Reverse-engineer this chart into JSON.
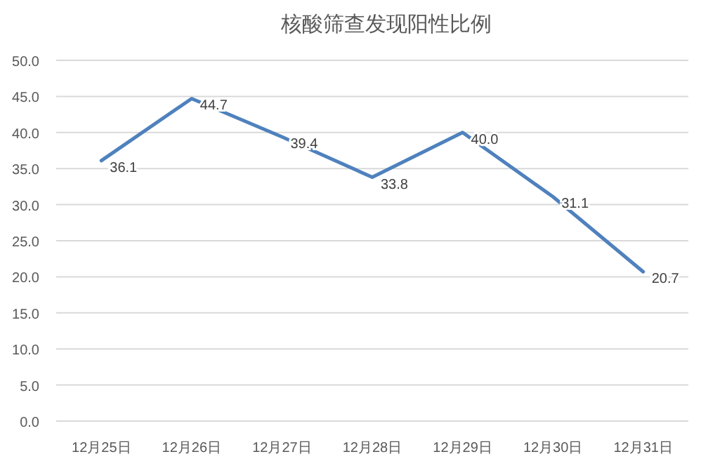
{
  "chart_data": {
    "type": "line",
    "title": "核酸筛查发现阳性比例",
    "categories": [
      "12月25日",
      "12月26日",
      "12月27日",
      "12月28日",
      "12月29日",
      "12月30日",
      "12月31日"
    ],
    "series": [
      {
        "color": "#4f81bd",
        "values": [
          36.1,
          44.7,
          39.4,
          33.8,
          40.0,
          31.1,
          20.7
        ],
        "value_labels": [
          "36.1",
          "44.7",
          "39.4",
          "33.8",
          "40.0",
          "31.1",
          "20.7"
        ]
      }
    ],
    "ylim": [
      0,
      50
    ],
    "yticks": [
      {
        "value": 0,
        "label": "0.0"
      },
      {
        "value": 5,
        "label": "5.0"
      },
      {
        "value": 10,
        "label": "10.0"
      },
      {
        "value": 15,
        "label": "15.0"
      },
      {
        "value": 20,
        "label": "20.0"
      },
      {
        "value": 25,
        "label": "25.0"
      },
      {
        "value": 30,
        "label": "30.0"
      },
      {
        "value": 35,
        "label": "35.0"
      },
      {
        "value": 40,
        "label": "40.0"
      },
      {
        "value": 45,
        "label": "45.0"
      },
      {
        "value": 50,
        "label": "50.0"
      }
    ],
    "grid": "y",
    "marker": "none",
    "line_style": "solid"
  }
}
